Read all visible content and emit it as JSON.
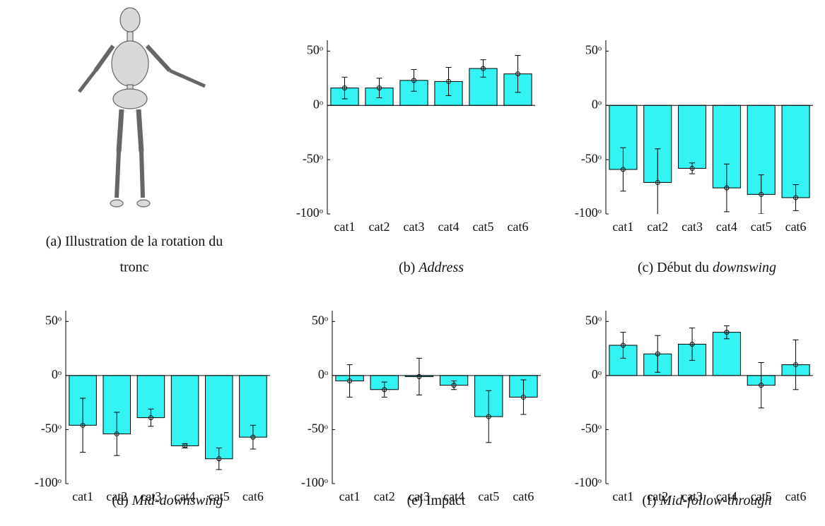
{
  "figure": {
    "panel_a": {
      "label": "(a)",
      "caption_line1": "Illustration de la rotation du",
      "caption_line2": "tronc"
    }
  },
  "chart_data": [
    {
      "type": "bar",
      "caption": {
        "label": "(b)",
        "emphasis": "Address"
      },
      "categories": [
        "cat1",
        "cat2",
        "cat3",
        "cat4",
        "cat5",
        "cat6"
      ],
      "values": [
        16,
        16,
        23,
        22,
        34,
        29
      ],
      "errors": [
        10,
        9,
        10,
        13,
        8,
        17
      ],
      "color": "#33f3f3",
      "ylim": [
        -100,
        60
      ],
      "yticks": [
        {
          "value": -100,
          "label": "-100ᵒ"
        },
        {
          "value": -50,
          "label": "-50ᵒ"
        },
        {
          "value": 0,
          "label": "0ᵒ"
        },
        {
          "value": 50,
          "label": "50ᵒ"
        }
      ]
    },
    {
      "type": "bar",
      "caption": {
        "label": "(c)",
        "text": "Début du",
        "emphasis": "downswing"
      },
      "categories": [
        "cat1",
        "cat2",
        "cat3",
        "cat4",
        "cat5",
        "cat6"
      ],
      "values": [
        -59,
        -71,
        -58,
        -76,
        -82,
        -85
      ],
      "errors": [
        20,
        31,
        5,
        22,
        18,
        12
      ],
      "color": "#33f3f3",
      "ylim": [
        -100,
        60
      ],
      "yticks": [
        {
          "value": -100,
          "label": "-100ᵒ"
        },
        {
          "value": -50,
          "label": "-50ᵒ"
        },
        {
          "value": 0,
          "label": "0ᵒ"
        },
        {
          "value": 50,
          "label": "50ᵒ"
        }
      ]
    },
    {
      "type": "bar",
      "caption": {
        "label": "(d)",
        "emphasis": "Mid-downswing"
      },
      "categories": [
        "cat1",
        "cat2",
        "cat3",
        "cat4",
        "cat5",
        "cat6"
      ],
      "values": [
        -46,
        -54,
        -39,
        -65,
        -77,
        -57
      ],
      "errors": [
        25,
        20,
        8,
        2,
        10,
        11
      ],
      "color": "#33f3f3",
      "ylim": [
        -100,
        60
      ],
      "yticks": [
        {
          "value": -100,
          "label": "-100ᵒ"
        },
        {
          "value": -50,
          "label": "-50ᵒ"
        },
        {
          "value": 0,
          "label": "0ᵒ"
        },
        {
          "value": 50,
          "label": "50ᵒ"
        }
      ]
    },
    {
      "type": "bar",
      "caption": {
        "label": "(e)",
        "text": "Impact"
      },
      "categories": [
        "cat1",
        "cat2",
        "cat3",
        "cat4",
        "cat5",
        "cat6"
      ],
      "values": [
        -5,
        -13,
        -1,
        -9,
        -38,
        -20
      ],
      "errors": [
        15,
        7,
        17,
        4,
        24,
        16
      ],
      "color": "#33f3f3",
      "ylim": [
        -100,
        60
      ],
      "yticks": [
        {
          "value": -100,
          "label": "-100ᵒ"
        },
        {
          "value": -50,
          "label": "-50ᵒ"
        },
        {
          "value": 0,
          "label": "0ᵒ"
        },
        {
          "value": 50,
          "label": "50ᵒ"
        }
      ]
    },
    {
      "type": "bar",
      "caption": {
        "label": "(f)",
        "emphasis": "Mid-follow-through"
      },
      "categories": [
        "cat1",
        "cat2",
        "cat3",
        "cat4",
        "cat5",
        "cat6"
      ],
      "values": [
        28,
        20,
        29,
        40,
        -9,
        10
      ],
      "errors": [
        12,
        17,
        15,
        6,
        21,
        23
      ],
      "color": "#33f3f3",
      "ylim": [
        -100,
        60
      ],
      "yticks": [
        {
          "value": -100,
          "label": "-100ᵒ"
        },
        {
          "value": -50,
          "label": "-50ᵒ"
        },
        {
          "value": 0,
          "label": "0ᵒ"
        },
        {
          "value": 50,
          "label": "50ᵒ"
        }
      ]
    }
  ]
}
